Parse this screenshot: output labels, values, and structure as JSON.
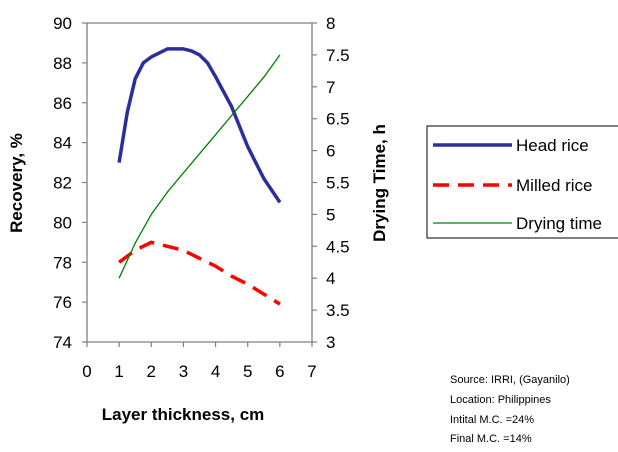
{
  "chart_data": {
    "type": "line",
    "xlabel": "Layer thickness, cm",
    "ylabel_left": "Recovery, %",
    "ylabel_right": "Drying Time, h",
    "xlim": [
      0,
      7
    ],
    "ylim_left": [
      74,
      90
    ],
    "ylim_right": [
      3,
      8
    ],
    "x_ticks": [
      "0",
      "1",
      "2",
      "3",
      "4",
      "5",
      "6",
      "7"
    ],
    "y_left_ticks": [
      "74",
      "76",
      "78",
      "80",
      "82",
      "84",
      "86",
      "88",
      "90"
    ],
    "y_right_ticks": [
      "3",
      "3.5",
      "4",
      "4.5",
      "5",
      "5.5",
      "6",
      "6.5",
      "7",
      "7.5",
      "8"
    ],
    "grid": false,
    "legend_position": "right",
    "series": [
      {
        "name": "Head rice",
        "axis": "left",
        "color": "#2b2e9b",
        "style": "solid-thick",
        "points": [
          [
            1,
            83
          ],
          [
            1.25,
            85.5
          ],
          [
            1.5,
            87.2
          ],
          [
            1.75,
            88
          ],
          [
            2,
            88.3
          ],
          [
            2.25,
            88.5
          ],
          [
            2.5,
            88.7
          ],
          [
            3,
            88.7
          ],
          [
            3.25,
            88.6
          ],
          [
            3.5,
            88.4
          ],
          [
            3.75,
            88
          ],
          [
            4,
            87.3
          ],
          [
            4.5,
            85.8
          ],
          [
            5,
            83.8
          ],
          [
            5.5,
            82.2
          ],
          [
            6,
            81
          ]
        ]
      },
      {
        "name": "Milled rice",
        "axis": "left",
        "color": "#ff0000",
        "style": "dashed",
        "points": [
          [
            1,
            78
          ],
          [
            1.5,
            78.6
          ],
          [
            2,
            79
          ],
          [
            2.5,
            78.8
          ],
          [
            3,
            78.6
          ],
          [
            3.5,
            78.2
          ],
          [
            4,
            77.8
          ],
          [
            4.5,
            77.3
          ],
          [
            5,
            76.9
          ],
          [
            5.5,
            76.4
          ],
          [
            6,
            75.9
          ]
        ]
      },
      {
        "name": "Drying time",
        "axis": "right",
        "color": "#008000",
        "style": "solid-thin",
        "points": [
          [
            1,
            4
          ],
          [
            1.5,
            4.55
          ],
          [
            2,
            5
          ],
          [
            2.5,
            5.35
          ],
          [
            3,
            5.65
          ],
          [
            3.5,
            5.95
          ],
          [
            4,
            6.25
          ],
          [
            4.5,
            6.55
          ],
          [
            5,
            6.85
          ],
          [
            5.5,
            7.15
          ],
          [
            6,
            7.5
          ]
        ]
      }
    ],
    "annotations": [
      "Source: IRRI, (Gayanilo)",
      "Location: Philippines",
      "Intital M.C. =24%",
      "Final M.C. =14%"
    ]
  }
}
